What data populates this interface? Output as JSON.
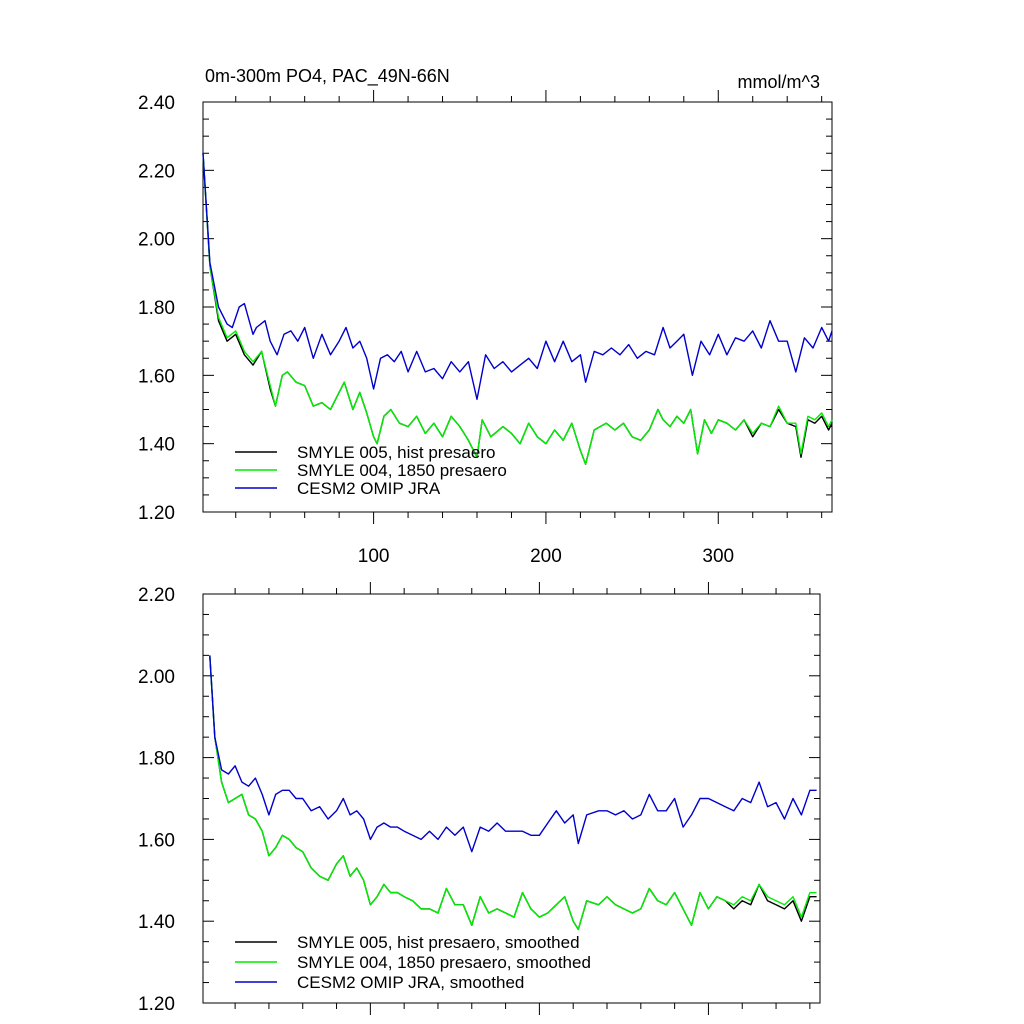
{
  "chart_data": [
    {
      "type": "line",
      "title": "0m-300m PO4, PAC_49N-66N",
      "units": "mmol/m^3",
      "xlim": [
        1,
        366
      ],
      "ylim": [
        1.2,
        2.4
      ],
      "yticks": [
        "1.20",
        "1.40",
        "1.60",
        "1.80",
        "2.00",
        "2.20",
        "2.40"
      ],
      "xticks": [
        "100",
        "200",
        "300"
      ],
      "legend_position": "bottom-left",
      "series": [
        {
          "name": "SMYLE 005, hist presaero",
          "color": "#000000",
          "x": [
            1,
            5,
            10,
            15,
            20,
            25,
            30,
            35,
            40,
            43,
            47,
            50,
            55,
            60,
            65,
            70,
            75,
            80,
            83,
            88,
            92,
            96,
            100,
            102,
            106,
            110,
            115,
            120,
            125,
            130,
            135,
            140,
            145,
            150,
            155,
            160,
            163,
            168,
            175,
            180,
            185,
            190,
            195,
            200,
            205,
            210,
            215,
            220,
            223,
            228,
            235,
            240,
            245,
            250,
            255,
            260,
            265,
            268,
            272,
            276,
            280,
            284,
            288,
            292,
            296,
            300,
            305,
            310,
            315,
            320,
            325,
            330,
            335,
            340,
            345,
            348,
            352,
            356,
            360,
            364,
            366
          ],
          "y": [
            2.25,
            1.92,
            1.76,
            1.7,
            1.72,
            1.66,
            1.63,
            1.67,
            1.56,
            1.51,
            1.6,
            1.61,
            1.58,
            1.57,
            1.51,
            1.52,
            1.5,
            1.55,
            1.58,
            1.5,
            1.55,
            1.49,
            1.42,
            1.4,
            1.48,
            1.5,
            1.46,
            1.45,
            1.48,
            1.43,
            1.46,
            1.42,
            1.48,
            1.45,
            1.41,
            1.36,
            1.47,
            1.42,
            1.45,
            1.43,
            1.4,
            1.46,
            1.42,
            1.4,
            1.44,
            1.41,
            1.46,
            1.38,
            1.34,
            1.44,
            1.46,
            1.44,
            1.46,
            1.42,
            1.41,
            1.44,
            1.5,
            1.47,
            1.45,
            1.48,
            1.46,
            1.5,
            1.37,
            1.47,
            1.43,
            1.47,
            1.46,
            1.44,
            1.47,
            1.42,
            1.46,
            1.45,
            1.5,
            1.46,
            1.45,
            1.36,
            1.47,
            1.46,
            1.48,
            1.44,
            1.46
          ]
        },
        {
          "name": "SMYLE 004, 1850 presaero",
          "color": "#00ee00",
          "x": [
            1,
            5,
            10,
            15,
            20,
            25,
            30,
            35,
            40,
            43,
            47,
            50,
            55,
            60,
            65,
            70,
            75,
            80,
            83,
            88,
            92,
            96,
            100,
            102,
            106,
            110,
            115,
            120,
            125,
            130,
            135,
            140,
            145,
            150,
            155,
            160,
            163,
            168,
            175,
            180,
            185,
            190,
            195,
            200,
            205,
            210,
            215,
            220,
            223,
            228,
            235,
            240,
            245,
            250,
            255,
            260,
            265,
            268,
            272,
            276,
            280,
            284,
            288,
            292,
            296,
            300,
            305,
            310,
            315,
            320,
            325,
            330,
            335,
            340,
            345,
            348,
            352,
            356,
            360,
            364,
            366
          ],
          "y": [
            2.25,
            1.92,
            1.77,
            1.71,
            1.73,
            1.67,
            1.64,
            1.67,
            1.57,
            1.51,
            1.6,
            1.61,
            1.58,
            1.57,
            1.51,
            1.52,
            1.5,
            1.55,
            1.58,
            1.5,
            1.55,
            1.49,
            1.42,
            1.4,
            1.48,
            1.5,
            1.46,
            1.45,
            1.48,
            1.43,
            1.46,
            1.42,
            1.48,
            1.45,
            1.41,
            1.36,
            1.47,
            1.42,
            1.45,
            1.43,
            1.4,
            1.46,
            1.42,
            1.4,
            1.44,
            1.41,
            1.46,
            1.38,
            1.34,
            1.44,
            1.46,
            1.44,
            1.46,
            1.42,
            1.41,
            1.44,
            1.5,
            1.47,
            1.45,
            1.48,
            1.46,
            1.5,
            1.37,
            1.47,
            1.43,
            1.47,
            1.46,
            1.44,
            1.47,
            1.43,
            1.46,
            1.45,
            1.51,
            1.46,
            1.46,
            1.37,
            1.48,
            1.47,
            1.49,
            1.45,
            1.47
          ]
        },
        {
          "name": "CESM2 OMIP JRA",
          "color": "#0000cc",
          "x": [
            1,
            5,
            10,
            15,
            18,
            22,
            25,
            30,
            32,
            37,
            40,
            44,
            48,
            52,
            56,
            60,
            65,
            70,
            75,
            80,
            84,
            88,
            92,
            96,
            100,
            104,
            108,
            112,
            116,
            120,
            125,
            130,
            135,
            140,
            145,
            150,
            155,
            160,
            165,
            170,
            175,
            180,
            185,
            190,
            195,
            200,
            205,
            210,
            215,
            220,
            223,
            228,
            233,
            238,
            243,
            248,
            253,
            258,
            263,
            268,
            272,
            276,
            280,
            285,
            290,
            295,
            300,
            305,
            310,
            315,
            320,
            325,
            330,
            335,
            340,
            345,
            350,
            355,
            360,
            364,
            366
          ],
          "y": [
            2.25,
            1.93,
            1.8,
            1.75,
            1.74,
            1.8,
            1.81,
            1.72,
            1.74,
            1.76,
            1.7,
            1.66,
            1.72,
            1.73,
            1.7,
            1.74,
            1.65,
            1.72,
            1.66,
            1.7,
            1.74,
            1.68,
            1.7,
            1.65,
            1.56,
            1.65,
            1.66,
            1.64,
            1.67,
            1.61,
            1.67,
            1.61,
            1.62,
            1.59,
            1.64,
            1.61,
            1.64,
            1.53,
            1.66,
            1.62,
            1.64,
            1.61,
            1.63,
            1.65,
            1.62,
            1.7,
            1.64,
            1.7,
            1.64,
            1.66,
            1.58,
            1.67,
            1.66,
            1.68,
            1.66,
            1.69,
            1.65,
            1.67,
            1.66,
            1.74,
            1.68,
            1.7,
            1.72,
            1.6,
            1.7,
            1.66,
            1.72,
            1.66,
            1.71,
            1.7,
            1.73,
            1.68,
            1.76,
            1.7,
            1.7,
            1.61,
            1.71,
            1.68,
            1.74,
            1.7,
            1.73
          ]
        }
      ]
    },
    {
      "type": "line",
      "title": "",
      "xlim": [
        1,
        366
      ],
      "ylim": [
        1.2,
        2.2
      ],
      "yticks": [
        "1.20",
        "1.40",
        "1.60",
        "1.80",
        "2.00",
        "2.20"
      ],
      "xticks": [],
      "legend_position": "bottom-left",
      "series": [
        {
          "name": "SMYLE 005, hist presaero, smoothed",
          "color": "#000000",
          "x": [
            5,
            8,
            12,
            16,
            20,
            24,
            28,
            32,
            36,
            40,
            44,
            48,
            52,
            56,
            60,
            65,
            70,
            75,
            80,
            84,
            88,
            92,
            96,
            100,
            104,
            108,
            112,
            116,
            120,
            125,
            130,
            135,
            140,
            145,
            150,
            155,
            160,
            165,
            170,
            175,
            180,
            185,
            190,
            195,
            200,
            205,
            210,
            215,
            220,
            223,
            228,
            235,
            240,
            245,
            250,
            255,
            260,
            265,
            270,
            275,
            280,
            285,
            290,
            295,
            300,
            305,
            310,
            315,
            320,
            325,
            330,
            335,
            340,
            345,
            350,
            355,
            360,
            364
          ],
          "y": [
            2.05,
            1.85,
            1.74,
            1.69,
            1.7,
            1.71,
            1.66,
            1.65,
            1.62,
            1.56,
            1.58,
            1.61,
            1.6,
            1.58,
            1.57,
            1.53,
            1.51,
            1.5,
            1.54,
            1.56,
            1.51,
            1.53,
            1.5,
            1.44,
            1.46,
            1.49,
            1.47,
            1.47,
            1.46,
            1.45,
            1.43,
            1.43,
            1.42,
            1.48,
            1.44,
            1.44,
            1.39,
            1.46,
            1.42,
            1.43,
            1.42,
            1.41,
            1.47,
            1.43,
            1.41,
            1.42,
            1.44,
            1.46,
            1.4,
            1.38,
            1.45,
            1.44,
            1.46,
            1.44,
            1.43,
            1.42,
            1.43,
            1.48,
            1.45,
            1.44,
            1.47,
            1.43,
            1.39,
            1.47,
            1.43,
            1.46,
            1.45,
            1.43,
            1.45,
            1.44,
            1.49,
            1.45,
            1.44,
            1.43,
            1.45,
            1.4,
            1.46,
            1.46
          ]
        },
        {
          "name": "SMYLE 004, 1850 presaero, smoothed",
          "color": "#00ee00",
          "x": [
            5,
            8,
            12,
            16,
            20,
            24,
            28,
            32,
            36,
            40,
            44,
            48,
            52,
            56,
            60,
            65,
            70,
            75,
            80,
            84,
            88,
            92,
            96,
            100,
            104,
            108,
            112,
            116,
            120,
            125,
            130,
            135,
            140,
            145,
            150,
            155,
            160,
            165,
            170,
            175,
            180,
            185,
            190,
            195,
            200,
            205,
            210,
            215,
            220,
            223,
            228,
            235,
            240,
            245,
            250,
            255,
            260,
            265,
            270,
            275,
            280,
            285,
            290,
            295,
            300,
            305,
            310,
            315,
            320,
            325,
            330,
            335,
            340,
            345,
            350,
            355,
            360,
            364
          ],
          "y": [
            2.05,
            1.85,
            1.74,
            1.69,
            1.7,
            1.71,
            1.66,
            1.65,
            1.62,
            1.56,
            1.58,
            1.61,
            1.6,
            1.58,
            1.57,
            1.53,
            1.51,
            1.5,
            1.54,
            1.56,
            1.51,
            1.53,
            1.5,
            1.44,
            1.46,
            1.49,
            1.47,
            1.47,
            1.46,
            1.45,
            1.43,
            1.43,
            1.42,
            1.48,
            1.44,
            1.44,
            1.39,
            1.46,
            1.42,
            1.43,
            1.42,
            1.41,
            1.47,
            1.43,
            1.41,
            1.42,
            1.44,
            1.46,
            1.4,
            1.38,
            1.45,
            1.44,
            1.46,
            1.44,
            1.43,
            1.42,
            1.43,
            1.48,
            1.45,
            1.44,
            1.47,
            1.43,
            1.39,
            1.47,
            1.43,
            1.46,
            1.45,
            1.44,
            1.46,
            1.45,
            1.49,
            1.46,
            1.45,
            1.44,
            1.46,
            1.41,
            1.47,
            1.47
          ]
        },
        {
          "name": "CESM2 OMIP JRA, smoothed",
          "color": "#0000cc",
          "x": [
            5,
            8,
            12,
            16,
            20,
            24,
            28,
            32,
            36,
            40,
            44,
            48,
            52,
            56,
            60,
            65,
            70,
            75,
            80,
            84,
            88,
            92,
            96,
            100,
            104,
            108,
            112,
            116,
            120,
            125,
            130,
            135,
            140,
            145,
            150,
            155,
            160,
            165,
            170,
            175,
            180,
            185,
            190,
            195,
            200,
            205,
            210,
            215,
            220,
            223,
            228,
            235,
            240,
            245,
            250,
            255,
            260,
            265,
            270,
            275,
            280,
            285,
            290,
            295,
            300,
            305,
            310,
            315,
            320,
            325,
            330,
            335,
            340,
            345,
            350,
            355,
            360,
            364
          ],
          "y": [
            2.05,
            1.85,
            1.77,
            1.76,
            1.78,
            1.74,
            1.73,
            1.75,
            1.71,
            1.66,
            1.71,
            1.72,
            1.72,
            1.7,
            1.7,
            1.67,
            1.68,
            1.65,
            1.67,
            1.7,
            1.66,
            1.67,
            1.65,
            1.6,
            1.63,
            1.64,
            1.63,
            1.63,
            1.62,
            1.61,
            1.6,
            1.62,
            1.6,
            1.63,
            1.61,
            1.63,
            1.57,
            1.63,
            1.62,
            1.64,
            1.62,
            1.62,
            1.62,
            1.61,
            1.61,
            1.64,
            1.67,
            1.64,
            1.66,
            1.59,
            1.66,
            1.67,
            1.67,
            1.66,
            1.67,
            1.65,
            1.66,
            1.71,
            1.67,
            1.67,
            1.7,
            1.63,
            1.66,
            1.7,
            1.7,
            1.69,
            1.68,
            1.67,
            1.7,
            1.69,
            1.74,
            1.68,
            1.69,
            1.65,
            1.7,
            1.66,
            1.72,
            1.72
          ]
        }
      ]
    }
  ]
}
